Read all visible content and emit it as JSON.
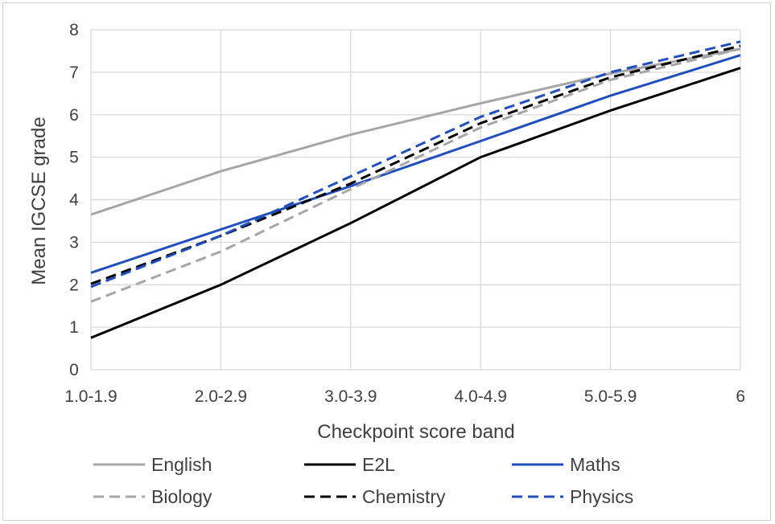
{
  "chart_data": {
    "type": "line",
    "title": "",
    "xlabel": "Checkpoint score band",
    "ylabel": "Mean IGCSE grade",
    "categories": [
      "1.0-1.9",
      "2.0-2.9",
      "3.0-3.9",
      "4.0-4.9",
      "5.0-5.9",
      "6"
    ],
    "ylim": [
      0,
      8
    ],
    "yticks": [
      0,
      1,
      2,
      3,
      4,
      5,
      6,
      7,
      8
    ],
    "grid": "vertical and horizontal",
    "legend_position": "bottom",
    "series": [
      {
        "name": "English",
        "color": "#a6a6a6",
        "dash": "solid",
        "values": [
          3.65,
          4.67,
          5.53,
          6.27,
          6.97,
          7.55
        ]
      },
      {
        "name": "E2L",
        "color": "#000000",
        "dash": "solid",
        "values": [
          0.75,
          2.0,
          3.45,
          5.0,
          6.1,
          7.1
        ]
      },
      {
        "name": "Maths",
        "color": "#1f4fbf",
        "dash": "solid",
        "values": [
          2.28,
          3.3,
          4.32,
          5.38,
          6.45,
          7.4
        ]
      },
      {
        "name": "Biology",
        "color": "#a6a6a6",
        "dash": "dashed",
        "values": [
          1.6,
          2.78,
          4.25,
          5.7,
          6.82,
          7.55
        ]
      },
      {
        "name": "Chemistry",
        "color": "#000000",
        "dash": "dashed",
        "values": [
          2.02,
          3.15,
          4.38,
          5.8,
          6.88,
          7.62
        ]
      },
      {
        "name": "Physics",
        "color": "#1f4fbf",
        "dash": "dashed",
        "values": [
          1.95,
          3.15,
          4.55,
          5.95,
          7.0,
          7.72
        ]
      }
    ]
  }
}
